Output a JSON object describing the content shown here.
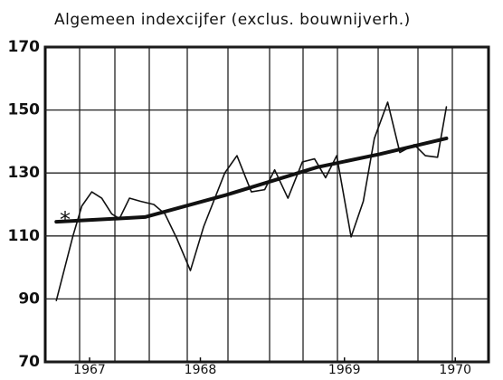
{
  "chart_data": {
    "type": "line",
    "title": "Algemeen indexcijfer (exclus. bouwnijverh.)",
    "xlim": [
      0,
      40
    ],
    "xticks": [
      {
        "value": 4,
        "label": "1967"
      },
      {
        "value": 14,
        "label": "1968"
      },
      {
        "value": 27,
        "label": "1969"
      },
      {
        "value": 37,
        "label": "1970"
      }
    ],
    "ylim": [
      70,
      170
    ],
    "yticks": [
      70,
      90,
      110,
      130,
      150,
      170
    ],
    "grid": true,
    "series": [
      {
        "color": "#111111",
        "width": 1.6,
        "x": [
          1.0,
          2.5,
          3.3,
          4.2,
          5.1,
          6.0,
          6.7,
          7.6,
          8.6,
          9.8,
          10.8,
          11.9,
          13.1,
          14.3,
          16.2,
          17.3,
          18.6,
          19.8,
          20.7,
          21.9,
          23.2,
          24.3,
          25.3,
          26.3,
          27.6,
          28.7,
          29.7,
          30.9,
          32.0,
          33.3,
          34.3,
          35.4,
          36.2
        ],
        "values": [
          89.5,
          110,
          119.5,
          124,
          122,
          117,
          115.5,
          122,
          121,
          120,
          117,
          109,
          99,
          113,
          130,
          135.5,
          124,
          124.7,
          131,
          122,
          133.5,
          134.5,
          128.5,
          135.5,
          109.7,
          121,
          141,
          152.5,
          136.5,
          139,
          135.5,
          135,
          151
        ]
      },
      {
        "color": "#111111",
        "width": 4,
        "x": [
          1.0,
          9.0,
          16.3,
          24.5,
          30.2,
          36.2
        ],
        "values": [
          114.5,
          116,
          123,
          131.8,
          136,
          141
        ]
      }
    ],
    "marker": {
      "label": "*",
      "x": 1.8,
      "y": 116
    }
  }
}
